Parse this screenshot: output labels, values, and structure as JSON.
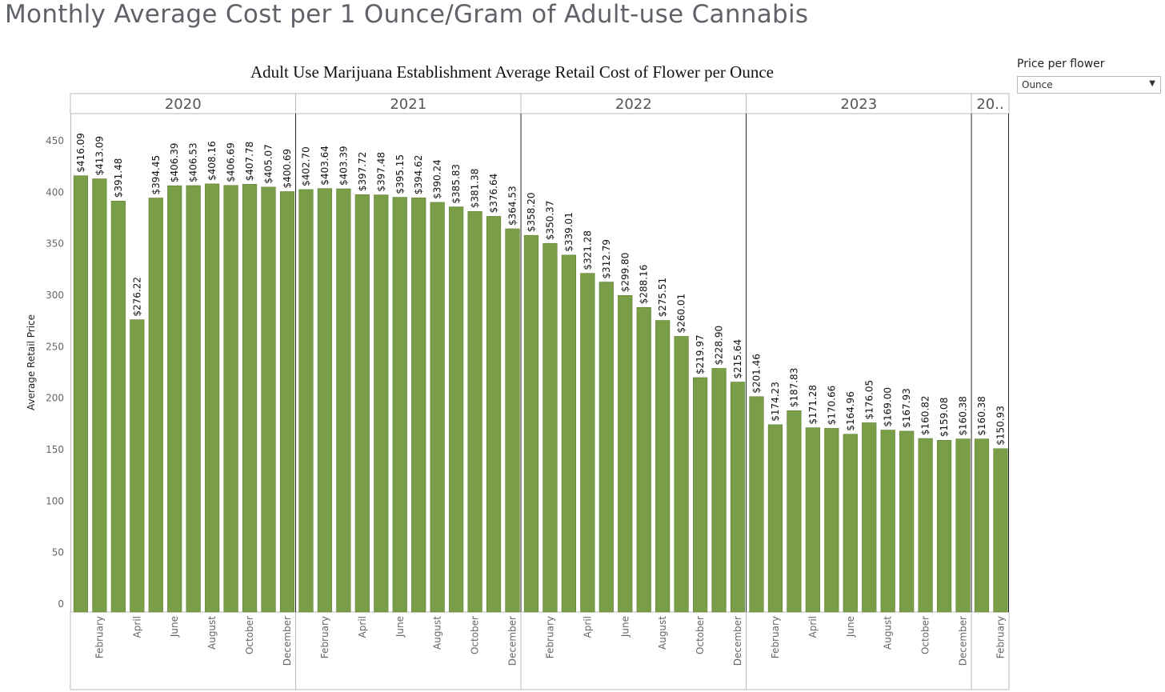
{
  "page_title": "Monthly Average Cost per 1 Ounce/Gram of Adult-use Cannabis",
  "filter": {
    "label": "Price per flower",
    "selected": "Ounce"
  },
  "colors": {
    "bar": "#7a9e48",
    "bar_border": "#5f7f35",
    "frame": "#bbbbbb",
    "separator": "#222222"
  },
  "chart_data": {
    "type": "bar",
    "title": "Adult Use Marijuana Establishment Average Retail Cost of Flower per Ounce",
    "ylabel": "Average Retail Price",
    "xlabel": "",
    "ylim": [
      0,
      480
    ],
    "yticks": [
      0,
      50,
      100,
      150,
      200,
      250,
      300,
      350,
      400,
      450
    ],
    "grid": false,
    "years": [
      {
        "label": "2020",
        "count": 12
      },
      {
        "label": "2021",
        "count": 12
      },
      {
        "label": "2022",
        "count": 12
      },
      {
        "label": "2023",
        "count": 12
      },
      {
        "label": "20..",
        "count": 2
      }
    ],
    "month_tick_labels": [
      "",
      "February",
      "",
      "April",
      "",
      "June",
      "",
      "August",
      "",
      "October",
      "",
      "December"
    ],
    "values": [
      416.09,
      413.09,
      391.48,
      276.22,
      394.45,
      406.39,
      406.53,
      408.16,
      406.69,
      407.78,
      405.07,
      400.69,
      402.7,
      403.64,
      403.39,
      397.72,
      397.48,
      395.15,
      394.62,
      390.24,
      385.83,
      381.38,
      376.64,
      364.53,
      358.2,
      350.37,
      339.01,
      321.28,
      312.79,
      299.8,
      288.16,
      275.51,
      260.01,
      219.97,
      228.9,
      215.64,
      201.46,
      174.23,
      187.83,
      171.28,
      170.66,
      164.96,
      176.05,
      169.0,
      167.93,
      160.82,
      159.08,
      160.38,
      160.38,
      150.93
    ],
    "data_labels": [
      "$416.09",
      "$413.09",
      "$391.48",
      "$276.22",
      "$394.45",
      "$406.39",
      "$406.53",
      "$408.16",
      "$406.69",
      "$407.78",
      "$405.07",
      "$400.69",
      "$402.70",
      "$403.64",
      "$403.39",
      "$397.72",
      "$397.48",
      "$395.15",
      "$394.62",
      "$390.24",
      "$385.83",
      "$381.38",
      "$376.64",
      "$364.53",
      "$358.20",
      "$350.37",
      "$339.01",
      "$321.28",
      "$312.79",
      "$299.80",
      "$288.16",
      "$275.51",
      "$260.01",
      "$219.97",
      "$228.90",
      "$215.64",
      "$201.46",
      "$174.23",
      "$187.83",
      "$171.28",
      "$170.66",
      "$164.96",
      "$176.05",
      "$169.00",
      "$167.93",
      "$160.82",
      "$159.08",
      "$160.38",
      "$160.38",
      "$150.93"
    ]
  }
}
